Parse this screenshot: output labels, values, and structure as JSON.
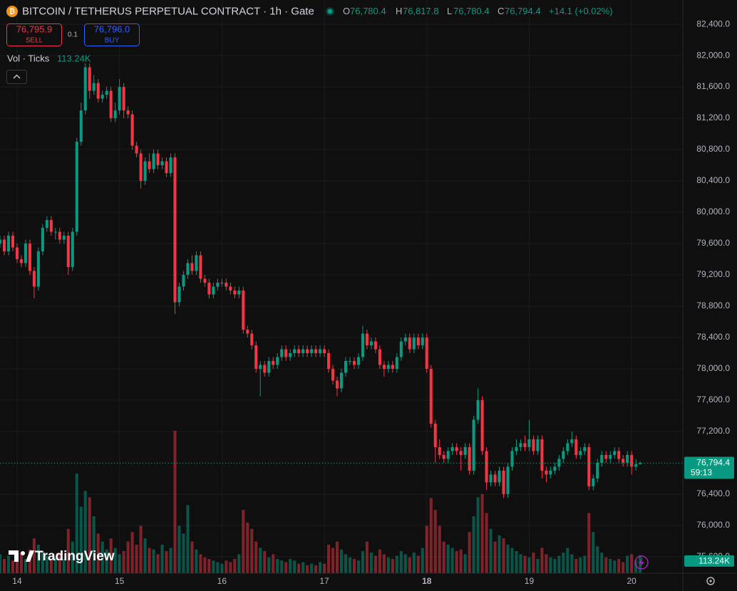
{
  "header": {
    "title": "BITCOIN / TETHERUS PERPETUAL CONTRACT · 1h · Gate",
    "ohlc": [
      {
        "letter": "O",
        "value": "76,780.4"
      },
      {
        "letter": "H",
        "value": "76,817.8"
      },
      {
        "letter": "L",
        "value": "76,780.4"
      },
      {
        "letter": "C",
        "value": "76,794.4"
      }
    ],
    "change": "+14.1 (+0.02%)"
  },
  "order": {
    "sell_price": "76,795.9",
    "sell": "SELL",
    "quantity": "0.1",
    "buy_price": "76,796.0",
    "buy": "BUY"
  },
  "volume_legend": {
    "label": "Vol · Ticks",
    "value": "113.24K"
  },
  "watermark": "TradingView",
  "chart_data": {
    "type": "candlestick",
    "up_color": "#089981",
    "down_color": "#f23645",
    "x": [
      -4,
      -3,
      -2,
      -1,
      0,
      1,
      2,
      3,
      4,
      5,
      6,
      7,
      8,
      9,
      10,
      11,
      12,
      13,
      14,
      15,
      16,
      17,
      18,
      19,
      20,
      21,
      22,
      23,
      24,
      25,
      26,
      27,
      28,
      29,
      30,
      31,
      32,
      33,
      34,
      35,
      36,
      37,
      38,
      39,
      40,
      41,
      42,
      43,
      44,
      45,
      46,
      47,
      48,
      49,
      50,
      51,
      52,
      53,
      54,
      55,
      56,
      57,
      58,
      59,
      60,
      61,
      62,
      63,
      64,
      65,
      66,
      67,
      68,
      69,
      70,
      71,
      72,
      73,
      74,
      75,
      76,
      77,
      78,
      79,
      80,
      81,
      82,
      83,
      84,
      85,
      86,
      87,
      88,
      89,
      90,
      91,
      92,
      93,
      94,
      95,
      96,
      97,
      98,
      99,
      100,
      101,
      102,
      103,
      104,
      105,
      106,
      107,
      108,
      109,
      110,
      111,
      112,
      113,
      114,
      115,
      116,
      117,
      118,
      119,
      120,
      121,
      122,
      123,
      124,
      125,
      126,
      127,
      128,
      129,
      130,
      131,
      132,
      133,
      134,
      135,
      136,
      137,
      138,
      139,
      140,
      141,
      142,
      143,
      144,
      145,
      146
    ],
    "open": [
      79600,
      79650,
      79500,
      79700,
      79550,
      79400,
      79350,
      79600,
      79250,
      79050,
      79500,
      79800,
      79900,
      79750,
      79750,
      79650,
      79700,
      79300,
      79750,
      80900,
      81300,
      81850,
      81550,
      81650,
      81450,
      81500,
      81550,
      81200,
      81300,
      81600,
      81300,
      81250,
      80850,
      80750,
      80400,
      80650,
      80550,
      80750,
      80600,
      80650,
      80500,
      80700,
      78850,
      79050,
      79200,
      79350,
      79250,
      79450,
      79150,
      79100,
      78950,
      79050,
      79100,
      79100,
      79050,
      79000,
      78950,
      79000,
      78500,
      78450,
      78300,
      78000,
      78050,
      77950,
      78100,
      78050,
      78150,
      78250,
      78150,
      78200,
      78250,
      78200,
      78250,
      78200,
      78250,
      78200,
      78250,
      78200,
      78000,
      77850,
      77750,
      77950,
      78100,
      78100,
      78050,
      78150,
      78450,
      78300,
      78350,
      78250,
      78050,
      78000,
      78050,
      78000,
      78150,
      78350,
      78400,
      78250,
      78400,
      78300,
      78400,
      78000,
      77300,
      77000,
      76900,
      76850,
      76950,
      77000,
      76950,
      76900,
      77000,
      76700,
      77350,
      77600,
      76950,
      76550,
      76650,
      76550,
      76700,
      76400,
      76750,
      76950,
      77000,
      77050,
      77000,
      77100,
      76950,
      77100,
      76700,
      76650,
      76700,
      76750,
      76850,
      76950,
      77050,
      77100,
      76900,
      76950,
      77000,
      76500,
      76600,
      76800,
      76900,
      76850,
      76900,
      76950,
      76850,
      76800,
      76900,
      76750,
      76780.4
    ],
    "high": [
      79700,
      79700,
      79750,
      79750,
      79600,
      79450,
      79650,
      79650,
      79300,
      79550,
      79850,
      79950,
      79950,
      79800,
      79800,
      79750,
      79750,
      79800,
      80950,
      81400,
      81900,
      81900,
      81750,
      81700,
      81550,
      81600,
      81600,
      81400,
      81700,
      81650,
      81350,
      81300,
      80900,
      80800,
      80700,
      80750,
      80800,
      80800,
      80700,
      80700,
      80750,
      80750,
      79100,
      79250,
      79400,
      79450,
      79500,
      79500,
      79200,
      79150,
      79100,
      79150,
      79150,
      79150,
      79100,
      79050,
      79050,
      79050,
      78550,
      78500,
      78350,
      78100,
      78100,
      78150,
      78150,
      78200,
      78300,
      78300,
      78250,
      78300,
      78300,
      78300,
      78300,
      78300,
      78300,
      78300,
      78300,
      78250,
      78050,
      77900,
      78000,
      78150,
      78150,
      78150,
      78200,
      78550,
      78500,
      78400,
      78400,
      78300,
      78100,
      78100,
      78100,
      78200,
      78400,
      78450,
      78450,
      78450,
      78450,
      78450,
      78450,
      78050,
      77350,
      77100,
      76950,
      77000,
      77050,
      77050,
      77000,
      77050,
      77050,
      77400,
      77750,
      77650,
      77000,
      76700,
      76700,
      76750,
      76750,
      76800,
      77000,
      77100,
      77100,
      77150,
      77350,
      77150,
      77150,
      77150,
      76750,
      76750,
      76800,
      76900,
      77000,
      77100,
      77200,
      77150,
      77000,
      77050,
      77050,
      76650,
      76850,
      76950,
      76950,
      76950,
      77000,
      77000,
      76900,
      76950,
      76950,
      76850,
      76817.8
    ],
    "low": [
      79550,
      79450,
      79450,
      79500,
      79350,
      79300,
      79300,
      79200,
      78900,
      79000,
      79450,
      79750,
      79700,
      79650,
      79600,
      79600,
      79200,
      79250,
      79700,
      80850,
      81250,
      81450,
      81500,
      81400,
      81400,
      81450,
      81150,
      81150,
      81250,
      81200,
      81200,
      80800,
      80700,
      80300,
      80350,
      80500,
      80500,
      80550,
      80550,
      80450,
      80450,
      78700,
      78800,
      79000,
      79150,
      79200,
      79200,
      79100,
      79050,
      78900,
      78900,
      79000,
      79050,
      79000,
      78950,
      78900,
      78900,
      78450,
      78400,
      78250,
      77950,
      77650,
      77900,
      77900,
      78000,
      78000,
      78100,
      78100,
      78100,
      78150,
      78150,
      78150,
      78150,
      78150,
      78150,
      78150,
      78150,
      77950,
      77800,
      77650,
      77700,
      77900,
      78050,
      78000,
      78000,
      78100,
      78250,
      78250,
      78200,
      78000,
      77900,
      77950,
      77950,
      77950,
      78100,
      78300,
      78200,
      78200,
      78250,
      78250,
      77950,
      77250,
      76800,
      76850,
      76800,
      76800,
      76900,
      76900,
      76700,
      76850,
      76650,
      76650,
      77300,
      76900,
      76450,
      76500,
      76500,
      76500,
      76350,
      76350,
      76700,
      76900,
      76950,
      76950,
      76950,
      76900,
      76900,
      76600,
      76550,
      76600,
      76650,
      76700,
      76800,
      76900,
      77000,
      76850,
      76850,
      76900,
      76450,
      76450,
      76550,
      76750,
      76800,
      76800,
      76850,
      76800,
      76750,
      76750,
      76650,
      76700,
      76780.4
    ],
    "close": [
      79650,
      79500,
      79700,
      79550,
      79400,
      79350,
      79600,
      79250,
      79050,
      79500,
      79800,
      79900,
      79750,
      79750,
      79650,
      79700,
      79300,
      79750,
      80900,
      81300,
      81850,
      81550,
      81650,
      81450,
      81500,
      81550,
      81200,
      81300,
      81600,
      81300,
      81250,
      80850,
      80750,
      80400,
      80650,
      80550,
      80750,
      80600,
      80650,
      80500,
      80700,
      78850,
      79050,
      79200,
      79350,
      79250,
      79450,
      79150,
      79100,
      78950,
      79050,
      79100,
      79100,
      79050,
      79000,
      78950,
      79000,
      78500,
      78450,
      78300,
      78000,
      78050,
      77950,
      78100,
      78050,
      78150,
      78250,
      78150,
      78200,
      78250,
      78200,
      78250,
      78200,
      78250,
      78200,
      78250,
      78200,
      78000,
      77850,
      77750,
      77950,
      78100,
      78100,
      78050,
      78150,
      78450,
      78300,
      78350,
      78250,
      78050,
      78000,
      78050,
      78000,
      78150,
      78350,
      78400,
      78250,
      78400,
      78300,
      78400,
      78000,
      77300,
      77000,
      76900,
      76850,
      76950,
      77000,
      76950,
      76900,
      77000,
      76700,
      77350,
      77600,
      76950,
      76550,
      76650,
      76550,
      76700,
      76400,
      76750,
      76950,
      77000,
      77050,
      77000,
      77100,
      76950,
      77100,
      76700,
      76650,
      76700,
      76750,
      76850,
      76950,
      77050,
      77100,
      76900,
      76950,
      77000,
      76500,
      76600,
      76800,
      76900,
      76850,
      76900,
      76950,
      76850,
      76800,
      76900,
      76750,
      76780.4,
      76794.4
    ],
    "volume": [
      120000,
      90000,
      110000,
      80000,
      100000,
      130000,
      90000,
      150000,
      220000,
      180000,
      140000,
      110000,
      90000,
      100000,
      130000,
      90000,
      280000,
      200000,
      630000,
      420000,
      520000,
      480000,
      360000,
      250000,
      200000,
      150000,
      220000,
      160000,
      120000,
      140000,
      200000,
      260000,
      180000,
      300000,
      220000,
      160000,
      150000,
      120000,
      180000,
      140000,
      160000,
      900000,
      300000,
      250000,
      430000,
      200000,
      150000,
      120000,
      100000,
      90000,
      80000,
      70000,
      60000,
      80000,
      70000,
      90000,
      120000,
      400000,
      320000,
      280000,
      200000,
      160000,
      140000,
      100000,
      120000,
      90000,
      80000,
      70000,
      90000,
      80000,
      60000,
      70000,
      50000,
      60000,
      50000,
      70000,
      60000,
      180000,
      160000,
      200000,
      150000,
      120000,
      100000,
      90000,
      80000,
      140000,
      200000,
      130000,
      110000,
      150000,
      120000,
      100000,
      90000,
      110000,
      140000,
      120000,
      100000,
      130000,
      110000,
      160000,
      300000,
      475000,
      400000,
      300000,
      200000,
      180000,
      160000,
      140000,
      150000,
      120000,
      260000,
      360000,
      480000,
      500000,
      380000,
      280000,
      200000,
      240000,
      220000,
      180000,
      160000,
      140000,
      120000,
      110000,
      100000,
      130000,
      90000,
      160000,
      120000,
      100000,
      90000,
      110000,
      130000,
      160000,
      120000,
      90000,
      100000,
      110000,
      380000,
      260000,
      170000,
      130000,
      100000,
      90000,
      80000,
      90000,
      70000,
      110000,
      120000,
      80000,
      113240
    ],
    "last_price_label": "76,794.4",
    "countdown": "59:13",
    "xlim": [
      -4,
      156
    ],
    "xticks": [
      {
        "value": 0,
        "label": "14"
      },
      {
        "value": 24,
        "label": "15"
      },
      {
        "value": 48,
        "label": "16"
      },
      {
        "value": 72,
        "label": "17"
      },
      {
        "value": 96,
        "label": "18"
      },
      {
        "value": 120,
        "label": "19"
      },
      {
        "value": 144,
        "label": "20"
      }
    ],
    "ylim": [
      75390,
      82710
    ],
    "yticks": [
      {
        "value": 75600,
        "label": "75,600.0"
      },
      {
        "value": 76000,
        "label": "76,000.0"
      },
      {
        "value": 76400,
        "label": "76,400.0"
      },
      {
        "value": 76800,
        "label": "76,800.0"
      },
      {
        "value": 77200,
        "label": "77,200.0"
      },
      {
        "value": 77600,
        "label": "77,600.0"
      },
      {
        "value": 78000,
        "label": "78,000.0"
      },
      {
        "value": 78400,
        "label": "78,400.0"
      },
      {
        "value": 78800,
        "label": "78,800.0"
      },
      {
        "value": 79200,
        "label": "79,200.0"
      },
      {
        "value": 79600,
        "label": "79,600.0"
      },
      {
        "value": 80000,
        "label": "80,000.0"
      },
      {
        "value": 80400,
        "label": "80,400.0"
      },
      {
        "value": 80800,
        "label": "80,800.0"
      },
      {
        "value": 81200,
        "label": "81,200.0"
      },
      {
        "value": 81600,
        "label": "81,600.0"
      },
      {
        "value": 82000,
        "label": "82,000.0"
      },
      {
        "value": 82400,
        "label": "82,400.0"
      }
    ],
    "grid": true
  }
}
